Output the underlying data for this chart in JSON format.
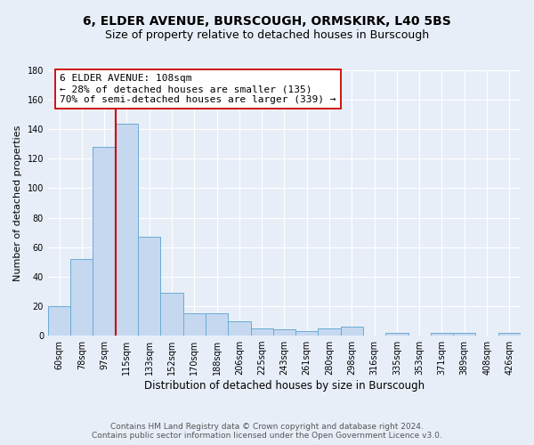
{
  "title": "6, ELDER AVENUE, BURSCOUGH, ORMSKIRK, L40 5BS",
  "subtitle": "Size of property relative to detached houses in Burscough",
  "xlabel": "Distribution of detached houses by size in Burscough",
  "ylabel": "Number of detached properties",
  "categories": [
    "60sqm",
    "78sqm",
    "97sqm",
    "115sqm",
    "133sqm",
    "152sqm",
    "170sqm",
    "188sqm",
    "206sqm",
    "225sqm",
    "243sqm",
    "261sqm",
    "280sqm",
    "298sqm",
    "316sqm",
    "335sqm",
    "353sqm",
    "371sqm",
    "389sqm",
    "408sqm",
    "426sqm"
  ],
  "values": [
    20,
    52,
    128,
    144,
    67,
    29,
    15,
    15,
    10,
    5,
    4,
    3,
    5,
    6,
    0,
    2,
    0,
    2,
    2,
    0,
    2
  ],
  "bar_color": "#c5d8f0",
  "bar_edge_color": "#6aacd4",
  "vline_color": "#cc0000",
  "annotation_text": "6 ELDER AVENUE: 108sqm\n← 28% of detached houses are smaller (135)\n70% of semi-detached houses are larger (339) →",
  "annotation_box_color": "#ffffff",
  "annotation_box_edge_color": "#cc0000",
  "ylim": [
    0,
    180
  ],
  "yticks": [
    0,
    20,
    40,
    60,
    80,
    100,
    120,
    140,
    160,
    180
  ],
  "background_color": "#e8eef8",
  "grid_color": "#ffffff",
  "footnote": "Contains HM Land Registry data © Crown copyright and database right 2024.\nContains public sector information licensed under the Open Government Licence v3.0.",
  "title_fontsize": 10,
  "subtitle_fontsize": 9,
  "xlabel_fontsize": 8.5,
  "ylabel_fontsize": 8,
  "tick_fontsize": 7,
  "annotation_fontsize": 8,
  "footnote_fontsize": 6.5
}
